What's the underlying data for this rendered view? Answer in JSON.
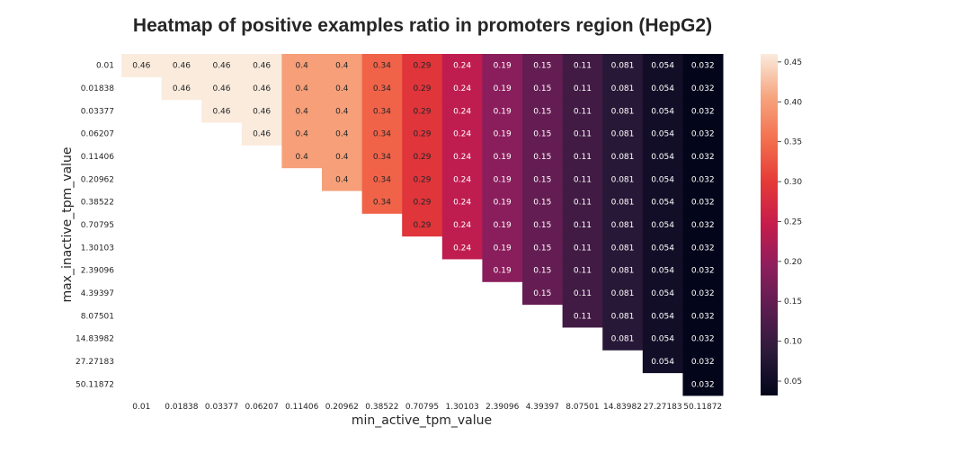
{
  "chart_data": {
    "type": "heatmap",
    "title": "Heatmap of positive examples ratio in promoters region (HepG2)",
    "xlabel": "min_active_tpm_value",
    "ylabel": "max_inactive_tpm_value",
    "x_categories": [
      "0.01",
      "0.01838",
      "0.03377",
      "0.06207",
      "0.11406",
      "0.20962",
      "0.38522",
      "0.70795",
      "1.30103",
      "2.39096",
      "4.39397",
      "8.07501",
      "14.83982",
      "27.27183",
      "50.11872"
    ],
    "y_categories": [
      "0.01",
      "0.01838",
      "0.03377",
      "0.06207",
      "0.11406",
      "0.20962",
      "0.38522",
      "0.70795",
      "1.30103",
      "2.39096",
      "4.39397",
      "8.07501",
      "14.83982",
      "27.27183",
      "50.11872"
    ],
    "column_values": [
      0.46,
      0.46,
      0.46,
      0.46,
      0.4,
      0.4,
      0.34,
      0.29,
      0.24,
      0.19,
      0.15,
      0.11,
      0.081,
      0.054,
      0.032
    ],
    "mask": "cells where column index < row index are empty (upper-triangular including diagonal)",
    "colorbar": {
      "colormap": "rocket",
      "min": 0.032,
      "max": 0.46,
      "ticks": [
        0.45,
        0.4,
        0.35,
        0.3,
        0.25,
        0.2,
        0.15,
        0.1,
        0.05
      ],
      "tick_labels": [
        "0.45",
        "0.40",
        "0.35",
        "0.30",
        "0.25",
        "0.20",
        "0.15",
        "0.10",
        "0.05"
      ]
    }
  }
}
